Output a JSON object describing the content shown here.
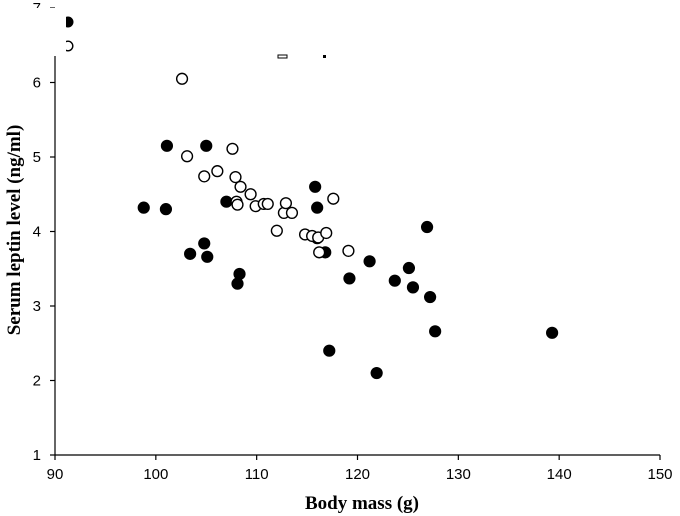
{
  "chart_data": {
    "type": "scatter",
    "xlabel": "Body mass (g)",
    "ylabel": "Serum leptin level (ng/ml)",
    "xlim": [
      90,
      150
    ],
    "ylim": [
      1,
      7
    ],
    "xticks": [
      "90",
      "100",
      "110",
      "120",
      "130",
      "140",
      "150"
    ],
    "yticks": [
      "1",
      "2",
      "3",
      "4",
      "5",
      "6",
      "7"
    ],
    "grid": false,
    "legend": "top-left",
    "legend_entries": [
      {
        "marker": "filled-circle",
        "label": ""
      },
      {
        "marker": "open-circle",
        "label": ""
      }
    ],
    "series": [
      {
        "marker": "filled-circle",
        "color": "#000000",
        "points": [
          [
            98.8,
            4.32
          ],
          [
            101.0,
            4.3
          ],
          [
            101.1,
            5.15
          ],
          [
            103.4,
            3.7
          ],
          [
            104.8,
            3.84
          ],
          [
            105.0,
            5.15
          ],
          [
            105.1,
            3.66
          ],
          [
            107.0,
            4.4
          ],
          [
            108.1,
            3.3
          ],
          [
            108.3,
            3.43
          ],
          [
            115.8,
            4.6
          ],
          [
            116.0,
            3.91
          ],
          [
            116.0,
            4.32
          ],
          [
            116.8,
            3.72
          ],
          [
            117.2,
            2.4
          ],
          [
            119.2,
            3.37
          ],
          [
            121.2,
            3.6
          ],
          [
            121.9,
            2.1
          ],
          [
            123.7,
            3.34
          ],
          [
            125.1,
            3.51
          ],
          [
            125.5,
            3.25
          ],
          [
            126.9,
            4.06
          ],
          [
            127.2,
            3.12
          ],
          [
            127.7,
            2.66
          ],
          [
            139.3,
            2.64
          ]
        ]
      },
      {
        "marker": "open-circle",
        "color": "#000000",
        "points": [
          [
            102.6,
            6.05
          ],
          [
            103.1,
            5.01
          ],
          [
            104.8,
            4.74
          ],
          [
            106.1,
            4.81
          ],
          [
            107.6,
            5.11
          ],
          [
            107.9,
            4.73
          ],
          [
            108.0,
            4.4
          ],
          [
            108.1,
            4.36
          ],
          [
            108.4,
            4.6
          ],
          [
            109.4,
            4.5
          ],
          [
            109.9,
            4.34
          ],
          [
            110.7,
            4.37
          ],
          [
            111.1,
            4.37
          ],
          [
            112.0,
            4.01
          ],
          [
            112.7,
            4.25
          ],
          [
            112.9,
            4.38
          ],
          [
            113.5,
            4.25
          ],
          [
            114.8,
            3.96
          ],
          [
            115.5,
            3.94
          ],
          [
            116.1,
            3.92
          ],
          [
            116.2,
            3.72
          ],
          [
            116.9,
            3.98
          ],
          [
            117.6,
            4.44
          ],
          [
            119.1,
            3.74
          ]
        ]
      }
    ]
  }
}
